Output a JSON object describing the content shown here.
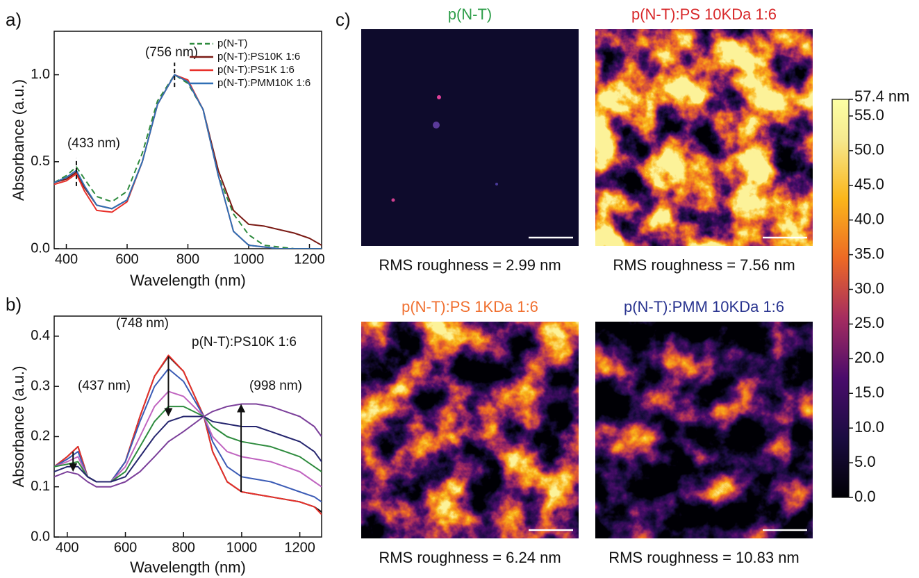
{
  "chart_data": [
    {
      "type": "line",
      "panel_label": "a)",
      "x": [
        360,
        400,
        433,
        460,
        500,
        550,
        600,
        650,
        700,
        756,
        800,
        850,
        900,
        950,
        1000,
        1050,
        1100,
        1150,
        1200,
        1240
      ],
      "series": [
        {
          "name": "p(N-T)",
          "color": "#2e8b3e",
          "dash": true,
          "values": [
            0.38,
            0.42,
            0.47,
            0.4,
            0.3,
            0.27,
            0.33,
            0.55,
            0.85,
            1.0,
            0.95,
            0.8,
            0.42,
            0.2,
            0.08,
            0.02,
            0.01,
            0.0,
            0.0,
            0.0
          ]
        },
        {
          "name": "p(N-T):PS10K 1:6",
          "color": "#7a1a14",
          "dash": false,
          "values": [
            0.38,
            0.4,
            0.44,
            0.35,
            0.25,
            0.23,
            0.28,
            0.5,
            0.83,
            1.0,
            0.96,
            0.8,
            0.45,
            0.22,
            0.14,
            0.13,
            0.11,
            0.09,
            0.06,
            0.02
          ]
        },
        {
          "name": "p(N-T):PS1K 1:6",
          "color": "#e8302a",
          "dash": false,
          "values": [
            0.37,
            0.39,
            0.43,
            0.33,
            0.22,
            0.21,
            0.27,
            0.5,
            0.83,
            1.0,
            0.97,
            0.8,
            0.42,
            0.1,
            0.02,
            0.01,
            0.0,
            0.0,
            0.0,
            0.0
          ]
        },
        {
          "name": "p(N-T):PMM10K 1:6",
          "color": "#2f6fb5",
          "dash": false,
          "values": [
            0.38,
            0.41,
            0.45,
            0.36,
            0.25,
            0.23,
            0.28,
            0.5,
            0.83,
            1.0,
            0.96,
            0.8,
            0.42,
            0.1,
            0.02,
            0.01,
            0.0,
            0.0,
            0.0,
            0.0
          ]
        }
      ],
      "xlim": [
        360,
        1240
      ],
      "xticks": [
        400,
        600,
        800,
        1000,
        1200
      ],
      "ylim": [
        0,
        1.25
      ],
      "yticks": [
        {
          "value": 0,
          "label": "0.0"
        },
        0.5,
        {
          "value": 1,
          "label": "1.0"
        }
      ],
      "x_label": "Wavelength (nm)",
      "y_label": "Absorbance (a.u.)",
      "annotations": [
        "(756 nm)",
        "(433 nm)"
      ],
      "legend": "upper right"
    },
    {
      "type": "line",
      "panel_label": "b)",
      "x": [
        355,
        400,
        437,
        470,
        500,
        550,
        600,
        650,
        700,
        748,
        800,
        870,
        900,
        950,
        1000,
        1050,
        1100,
        1150,
        1200,
        1250,
        1275
      ],
      "series": [
        {
          "color": "#111111",
          "values": [
            0.14,
            0.16,
            0.18,
            0.12,
            0.11,
            0.11,
            0.15,
            0.24,
            0.32,
            0.36,
            0.33,
            0.24,
            0.17,
            0.11,
            0.09,
            0.085,
            0.08,
            0.075,
            0.07,
            0.06,
            0.05
          ]
        },
        {
          "color": "#e8302a",
          "values": [
            0.14,
            0.16,
            0.18,
            0.12,
            0.11,
            0.11,
            0.15,
            0.24,
            0.32,
            0.362,
            0.33,
            0.24,
            0.17,
            0.11,
            0.09,
            0.085,
            0.08,
            0.075,
            0.07,
            0.06,
            0.045
          ]
        },
        {
          "color": "#3b5bb5",
          "values": [
            0.14,
            0.155,
            0.17,
            0.12,
            0.11,
            0.11,
            0.15,
            0.23,
            0.3,
            0.335,
            0.31,
            0.24,
            0.19,
            0.14,
            0.12,
            0.115,
            0.11,
            0.1,
            0.09,
            0.08,
            0.07
          ]
        },
        {
          "color": "#c064c0",
          "values": [
            0.14,
            0.15,
            0.16,
            0.12,
            0.11,
            0.11,
            0.14,
            0.2,
            0.26,
            0.29,
            0.28,
            0.24,
            0.2,
            0.17,
            0.16,
            0.155,
            0.15,
            0.14,
            0.13,
            0.11,
            0.1
          ]
        },
        {
          "color": "#2e8b3e",
          "values": [
            0.14,
            0.145,
            0.15,
            0.12,
            0.11,
            0.11,
            0.13,
            0.18,
            0.23,
            0.26,
            0.26,
            0.24,
            0.22,
            0.2,
            0.19,
            0.185,
            0.18,
            0.17,
            0.16,
            0.14,
            0.13
          ]
        },
        {
          "color": "#25256e",
          "values": [
            0.13,
            0.14,
            0.14,
            0.12,
            0.11,
            0.11,
            0.12,
            0.16,
            0.2,
            0.23,
            0.24,
            0.24,
            0.23,
            0.225,
            0.22,
            0.22,
            0.21,
            0.2,
            0.19,
            0.17,
            0.15
          ]
        },
        {
          "color": "#7b3f9a",
          "values": [
            0.12,
            0.13,
            0.125,
            0.11,
            0.1,
            0.1,
            0.11,
            0.13,
            0.16,
            0.19,
            0.21,
            0.24,
            0.25,
            0.26,
            0.265,
            0.265,
            0.26,
            0.25,
            0.24,
            0.22,
            0.2
          ]
        }
      ],
      "xlim": [
        355,
        1275
      ],
      "xticks": [
        400,
        600,
        800,
        1000,
        1200
      ],
      "ylim": [
        0,
        0.44
      ],
      "yticks": [
        {
          "value": 0,
          "label": "0.0"
        },
        0.1,
        0.2,
        0.3,
        0.4
      ],
      "x_label": "Wavelength (nm)",
      "y_label": "Absorbance (a.u.)",
      "annotations": [
        "(748 nm)",
        "(437 nm)",
        "(998 nm)",
        "p(N-T):PS10K 1:6"
      ]
    },
    {
      "type": "afm",
      "panel_label": "c)",
      "panels": [
        {
          "title": "p(N-T)",
          "title_color": "#2e9e4a",
          "rms": "RMS roughness = 2.99 nm"
        },
        {
          "title": "p(N-T):PS 10KDa 1:6",
          "title_color": "#d8282a",
          "rms": "RMS roughness = 7.56 nm"
        },
        {
          "title": "p(N-T):PS 1KDa 1:6",
          "title_color": "#f07030",
          "rms": "RMS roughness = 6.24 nm"
        },
        {
          "title": "p(N-T):PMM 10KDa 1:6",
          "title_color": "#2a3590",
          "rms": "RMS roughness = 10.83 nm"
        }
      ],
      "colorbar": {
        "lim": [
          0,
          57.4
        ],
        "max_label": "57.4 nm",
        "ticks": [
          {
            "value": 0,
            "label": "0.0"
          },
          {
            "value": 5,
            "label": "5.0"
          },
          {
            "value": 10,
            "label": "10.0"
          },
          {
            "value": 15,
            "label": "15.0"
          },
          {
            "value": 20,
            "label": "20.0"
          },
          {
            "value": 25,
            "label": "25.0"
          },
          {
            "value": 30,
            "label": "30.0"
          },
          {
            "value": 35,
            "label": "35.0"
          },
          {
            "value": 40,
            "label": "40.0"
          },
          {
            "value": 45,
            "label": "45.0"
          },
          {
            "value": 50,
            "label": "50.0"
          },
          {
            "value": 55,
            "label": "55.0"
          }
        ]
      }
    }
  ]
}
